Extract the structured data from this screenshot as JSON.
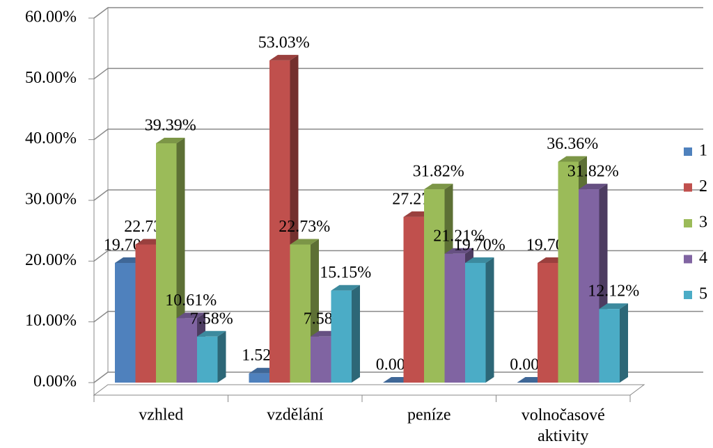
{
  "chart_data": {
    "type": "bar3d",
    "categories": [
      "vzhled",
      "vzdělání",
      "peníze",
      "volnočasové aktivity"
    ],
    "series": [
      {
        "name": "1",
        "color": "#4f81bd",
        "values": [
          19.7,
          1.52,
          0,
          0
        ],
        "value_labels": [
          "19.70%",
          "1.52%",
          "0.00%",
          "0.00%"
        ]
      },
      {
        "name": "2",
        "color": "#c0504d",
        "values": [
          22.73,
          53.03,
          27.27,
          19.7
        ],
        "value_labels": [
          "22.73%",
          "53.03%",
          "27.27%",
          "19.70%"
        ]
      },
      {
        "name": "3",
        "color": "#9bbb59",
        "values": [
          39.39,
          22.73,
          31.82,
          36.36
        ],
        "value_labels": [
          "39.39%",
          "22.73%",
          "31.82%",
          "36.36%"
        ]
      },
      {
        "name": "4",
        "color": "#8064a2",
        "values": [
          10.61,
          7.58,
          21.21,
          31.82
        ],
        "value_labels": [
          "10.61%",
          "7.58%",
          "21.21%",
          "31.82%"
        ]
      },
      {
        "name": "5",
        "color": "#4bacc6",
        "values": [
          7.58,
          15.15,
          19.7,
          12.12
        ],
        "value_labels": [
          "7.58%",
          "15.15%",
          "19.70%",
          "12.12%"
        ]
      }
    ],
    "ylim": [
      0,
      60
    ],
    "yticks": [
      {
        "value": 0,
        "label": "0.00%"
      },
      {
        "value": 10,
        "label": "10.00%"
      },
      {
        "value": 20,
        "label": "20.00%"
      },
      {
        "value": 30,
        "label": "30.00%"
      },
      {
        "value": 40,
        "label": "40.00%"
      },
      {
        "value": 50,
        "label": "50.00%"
      },
      {
        "value": 60,
        "label": "60.00%"
      }
    ],
    "grid": true,
    "legend": "right"
  }
}
